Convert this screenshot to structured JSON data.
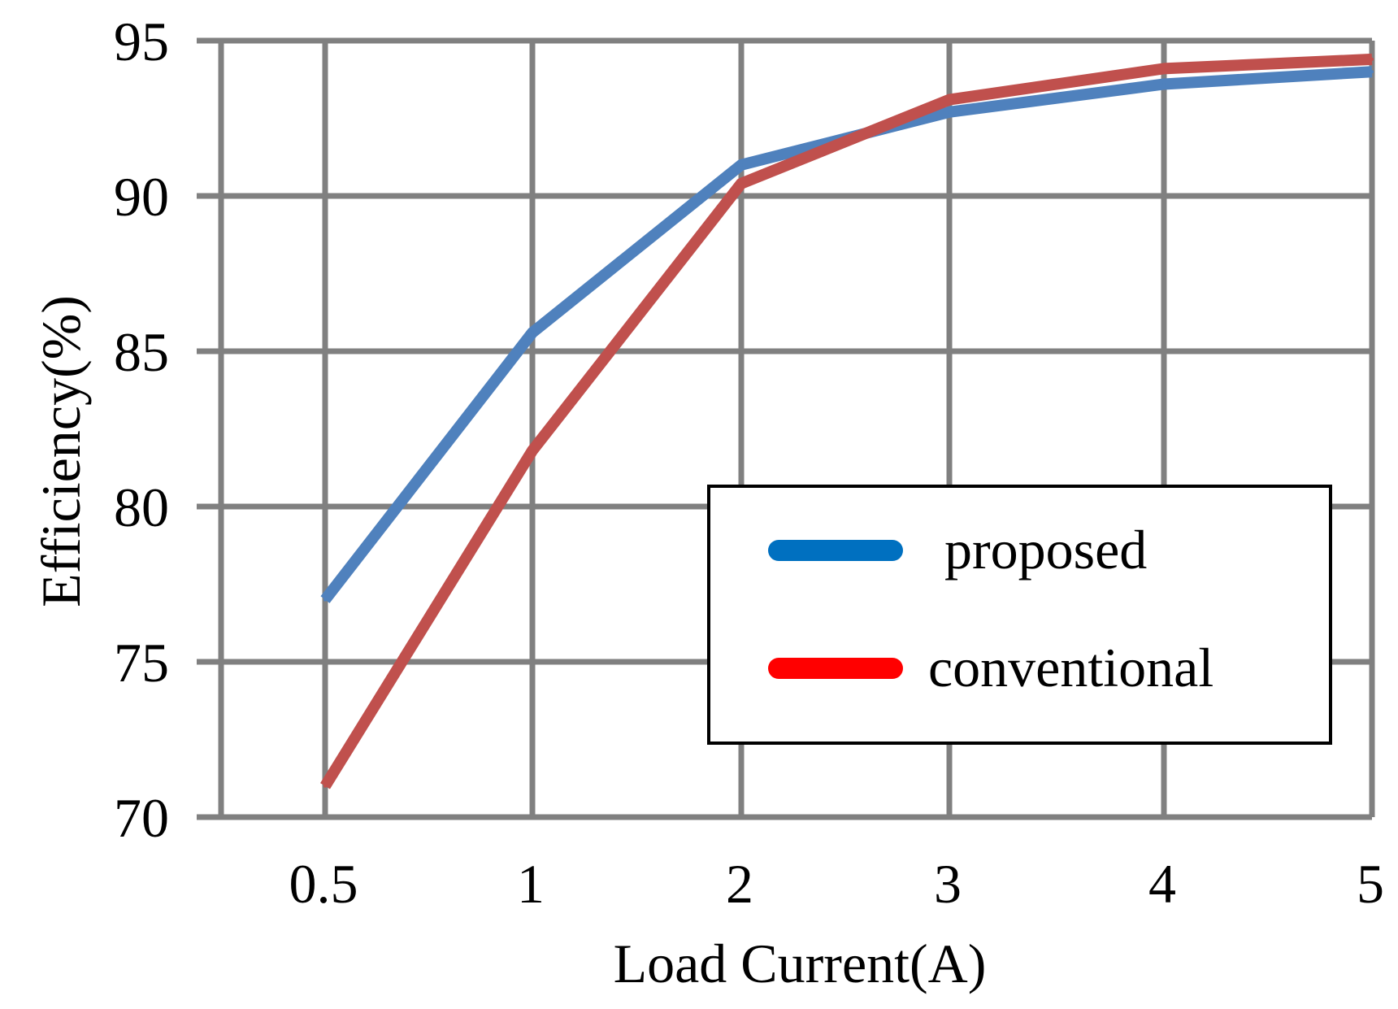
{
  "chart_data": {
    "type": "line",
    "title": "",
    "xlabel": "Load Current(A)",
    "ylabel": "Efficiency(%)",
    "categories": [
      "0.5",
      "1",
      "2",
      "3",
      "4",
      "5"
    ],
    "ylim": [
      70,
      95
    ],
    "yticks": [
      "70",
      "75",
      "80",
      "85",
      "90",
      "95"
    ],
    "grid": true,
    "legend_position": "center-right",
    "series": [
      {
        "name": "proposed",
        "color": "#4f81bd",
        "legend_color": "#0070c0",
        "values": [
          77.0,
          85.6,
          91.0,
          92.7,
          93.6,
          94.0
        ]
      },
      {
        "name": "conventional",
        "color": "#c0504d",
        "legend_color": "#ff0000",
        "values": [
          71.0,
          81.8,
          90.4,
          93.1,
          94.1,
          94.4
        ]
      }
    ]
  }
}
